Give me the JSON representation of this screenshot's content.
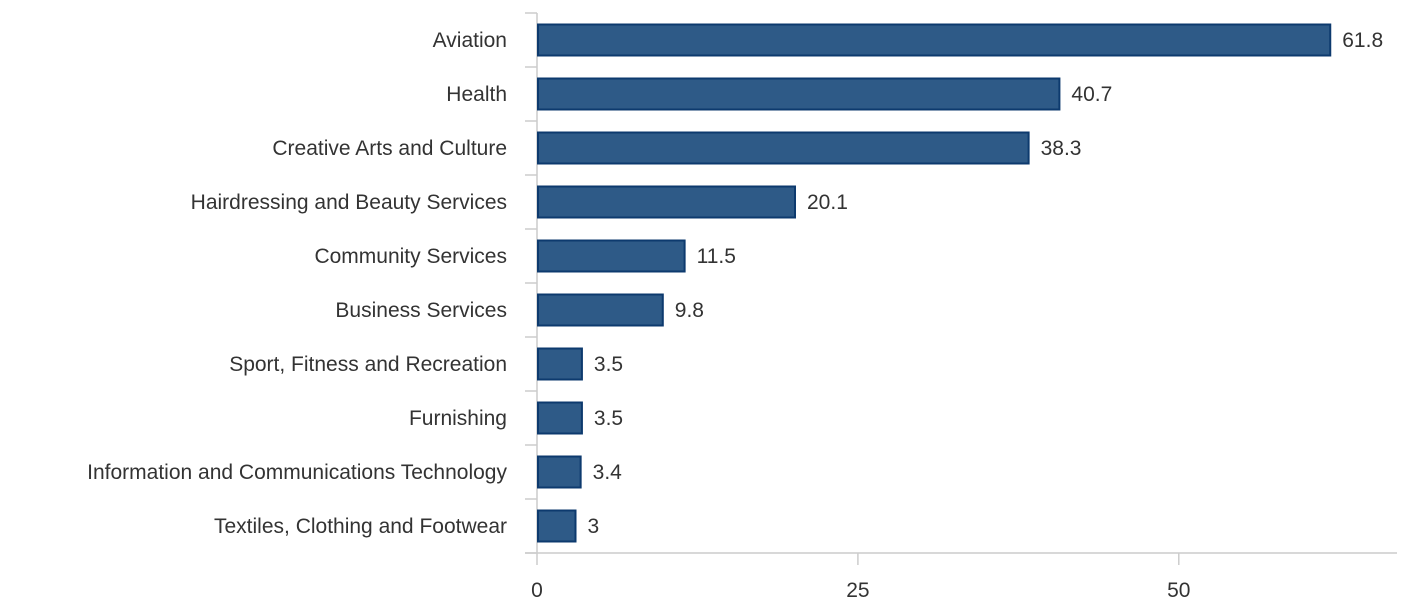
{
  "chart_data": {
    "type": "bar",
    "orientation": "horizontal",
    "title": "",
    "xlabel": "",
    "ylabel": "",
    "categories": [
      "Aviation",
      "Health",
      "Creative Arts and Culture",
      "Hairdressing and Beauty Services",
      "Community Services",
      "Business Services",
      "Sport, Fitness and Recreation",
      "Furnishing",
      "Information and Communications Technology",
      "Textiles, Clothing and Footwear"
    ],
    "values": [
      61.8,
      40.7,
      38.3,
      20.1,
      11.5,
      9.8,
      3.5,
      3.5,
      3.4,
      3
    ],
    "xlim": [
      0,
      67
    ],
    "xticks": [
      0,
      25,
      50
    ],
    "grid": false,
    "legend": "none",
    "data_labels": true,
    "colors": {
      "bar_fill": "#2e5a87",
      "bar_stroke": "#0d3a6e",
      "axis": "#cccccc",
      "text": "#333333"
    }
  }
}
